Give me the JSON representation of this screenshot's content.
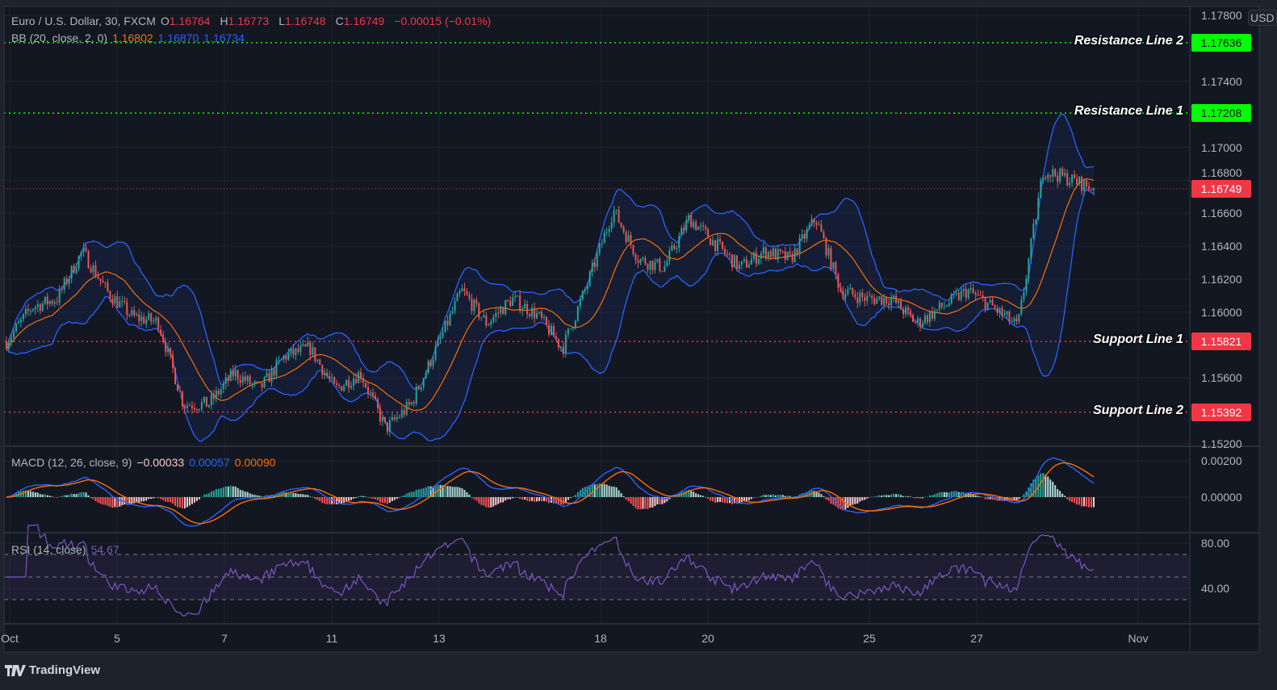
{
  "header": {
    "symbol": "Euro / U.S. Dollar, 30, FXCM",
    "open_label": "O",
    "open": "1.16764",
    "high_label": "H",
    "high": "1.16773",
    "low_label": "L",
    "low": "1.16748",
    "close_label": "C",
    "close": "1.16749",
    "change": "−0.00015 (−0.01%)"
  },
  "indicators": {
    "bb": {
      "label": "BB (20, close, 2, 0)",
      "basis": "1.16802",
      "upper": "1.16870",
      "lower": "1.16734"
    },
    "macd": {
      "label": "MACD (12, 26, close, 9)",
      "hist": "−0.00033",
      "macd": "0.00057",
      "signal": "0.00090"
    },
    "rsi": {
      "label": "RSI (14, close)",
      "value": "54.67"
    }
  },
  "currency": "USD",
  "levels": [
    {
      "label": "Resistance Line 2",
      "value": "1.17636",
      "color": "#00ff00"
    },
    {
      "label": "Resistance Line 1",
      "value": "1.17208",
      "color": "#00ff00"
    },
    {
      "label": "Support Line 1",
      "value": "1.15821",
      "color": "#f23645"
    },
    {
      "label": "Support Line 2",
      "value": "1.15392",
      "color": "#f23645"
    }
  ],
  "last_price": {
    "value": "1.16749",
    "color": "#f23645"
  },
  "price_ticks": [
    "1.17800",
    "1.17400",
    "1.17000",
    "1.16800",
    "1.16600",
    "1.16400",
    "1.16200",
    "1.16000",
    "1.15600",
    "1.15200"
  ],
  "macd_ticks": [
    "0.00200",
    "0.00000"
  ],
  "rsi_ticks": [
    "80.00",
    "40.00"
  ],
  "time_ticks": [
    "Oct",
    "5",
    "7",
    "11",
    "13",
    "18",
    "20",
    "25",
    "27",
    "Nov"
  ],
  "branding": "TradingView",
  "chart_data": {
    "type": "candlestick",
    "title": "Euro / U.S. Dollar, 30, FXCM",
    "ylim": [
      1.152,
      1.178
    ],
    "grid": true,
    "colors": {
      "up": "#26a69a",
      "down": "#ef5350",
      "bb_band": "#2962ff",
      "bb_basis": "#ff6d00",
      "macd": "#2962ff",
      "signal": "#ff6d00",
      "rsi": "#7e57c2"
    },
    "approx_close_path": [
      1.1582,
      1.1603,
      1.1608,
      1.1637,
      1.1612,
      1.1597,
      1.1594,
      1.1544,
      1.1544,
      1.1563,
      1.1553,
      1.1573,
      1.1578,
      1.1553,
      1.1563,
      1.1529,
      1.1544,
      1.1578,
      1.1613,
      1.1593,
      1.1608,
      1.1598,
      1.1578,
      1.1618,
      1.1662,
      1.1632,
      1.1627,
      1.1657,
      1.1642,
      1.1627,
      1.1637,
      1.1632,
      1.1657,
      1.1613,
      1.1608,
      1.1608,
      1.1593,
      1.1603,
      1.1613,
      1.1603,
      1.1591,
      1.1686,
      1.1681,
      1.16749
    ],
    "rsi_levels": [
      70,
      50,
      30
    ]
  }
}
